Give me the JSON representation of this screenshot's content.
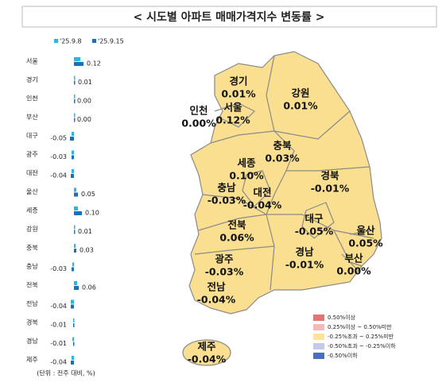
{
  "chart_data": {
    "type": "bar",
    "orientation": "horizontal",
    "title": "< 시도별 아파트 매매가격지수 변동률 >",
    "categories": [
      "서울",
      "경기",
      "인천",
      "부산",
      "대구",
      "광주",
      "대전",
      "울산",
      "세종",
      "강원",
      "충북",
      "충남",
      "전북",
      "전남",
      "경북",
      "경남",
      "제주"
    ],
    "series": [
      {
        "name": "'25.9.8",
        "color": "#29b6e8",
        "values": [
          0.08,
          0.01,
          0.0,
          0.0,
          -0.03,
          -0.03,
          -0.03,
          0.03,
          0.05,
          0.01,
          0.02,
          -0.02,
          0.04,
          -0.04,
          -0.01,
          -0.02,
          -0.03
        ]
      },
      {
        "name": "'25.9.15",
        "color": "#1f6fb8",
        "values": [
          0.12,
          0.01,
          0.0,
          0.0,
          -0.05,
          -0.03,
          -0.04,
          0.05,
          0.1,
          0.01,
          0.03,
          -0.03,
          0.06,
          -0.04,
          -0.01,
          -0.01,
          -0.04
        ],
        "value_labels": [
          "0.12",
          "0.01",
          "0.00",
          "0.00",
          "-0.05",
          "-0.03",
          "-0.04",
          "0.05",
          "0.10",
          "0.01",
          "0.03",
          "-0.03",
          "0.06",
          "-0.04",
          "-0.01",
          "-0.01",
          "-0.04"
        ]
      }
    ],
    "note": "(단위 : 전주 대비, %)"
  },
  "map": {
    "regions": [
      {
        "name": "경기",
        "label": "0.01%"
      },
      {
        "name": "강원",
        "label": "0.01%"
      },
      {
        "name": "인천",
        "label": "0.00%"
      },
      {
        "name": "서울",
        "label": "0.12%"
      },
      {
        "name": "충북",
        "label": "0.03%"
      },
      {
        "name": "세종",
        "label": "0.10%"
      },
      {
        "name": "경북",
        "label": "-0.01%"
      },
      {
        "name": "충남",
        "label": "-0.03%"
      },
      {
        "name": "대전",
        "label": "-0.04%"
      },
      {
        "name": "울산",
        "label": "0.05%"
      },
      {
        "name": "대구",
        "label": "-0.05%"
      },
      {
        "name": "전북",
        "label": "0.06%"
      },
      {
        "name": "경남",
        "label": "-0.01%"
      },
      {
        "name": "부산",
        "label": "0.00%"
      },
      {
        "name": "광주",
        "label": "-0.03%"
      },
      {
        "name": "전남",
        "label": "-0.04%"
      },
      {
        "name": "제주",
        "label": "-0.04%"
      }
    ],
    "legend": [
      {
        "label": "0.50%이상",
        "color": "#e57373"
      },
      {
        "label": "0.25%이상 ~ 0.50%미만",
        "color": "#f4b8b8"
      },
      {
        "label": "-0.25%초과 ~ 0.25%미만",
        "color": "#fbe39a"
      },
      {
        "label": "-0.50%초과 ~ -0.25%이하",
        "color": "#c5cae9"
      },
      {
        "label": "-0.50%이하",
        "color": "#4a6fc0"
      }
    ]
  }
}
